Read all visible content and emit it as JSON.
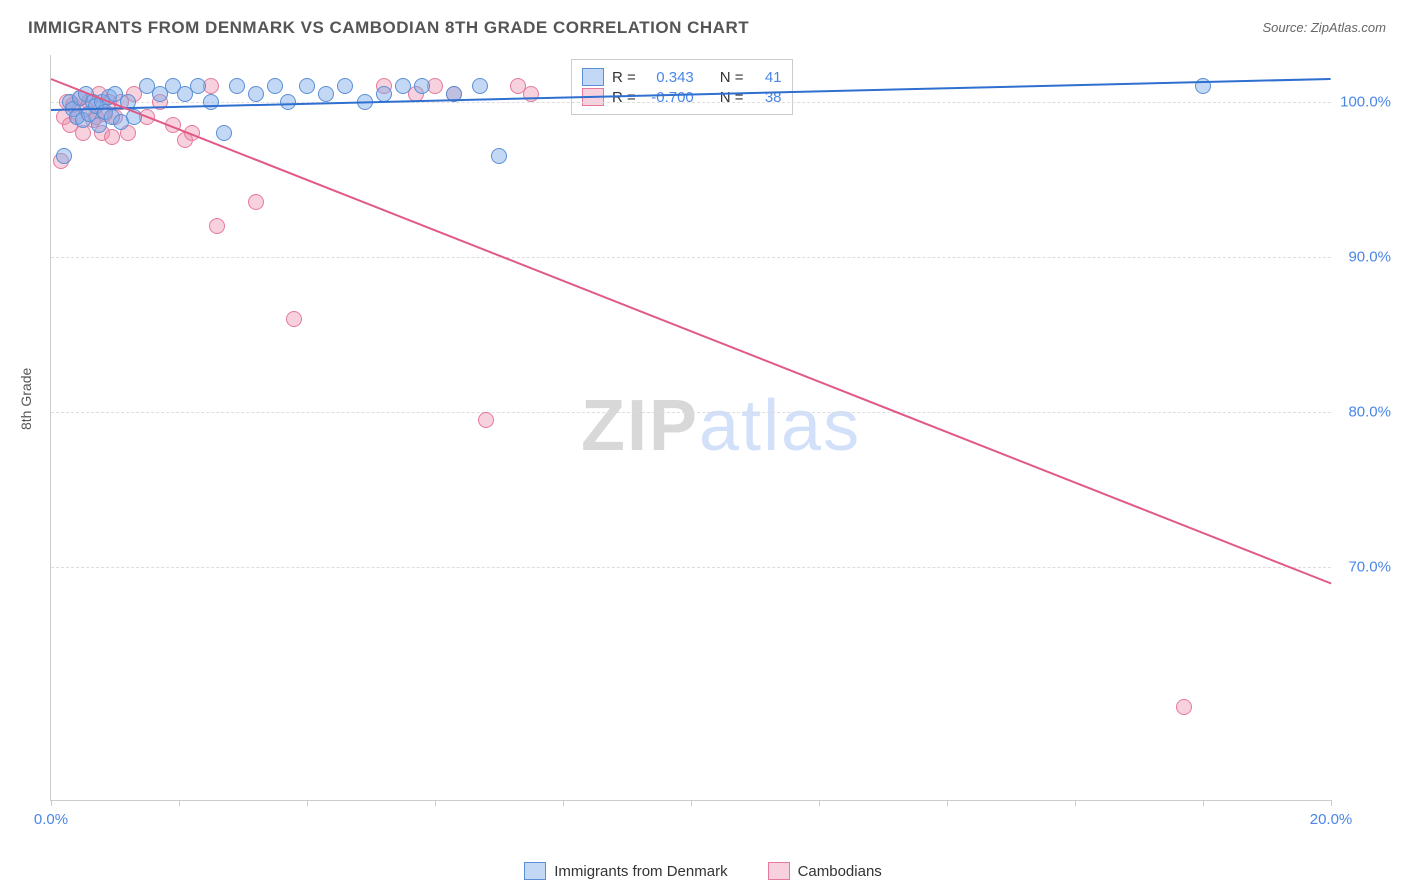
{
  "title": "IMMIGRANTS FROM DENMARK VS CAMBODIAN 8TH GRADE CORRELATION CHART",
  "source_label": "Source: ",
  "source_name": "ZipAtlas.com",
  "y_axis_label": "8th Grade",
  "watermark_a": "ZIP",
  "watermark_b": "atlas",
  "chart": {
    "type": "scatter",
    "xlim": [
      0,
      20
    ],
    "ylim": [
      55,
      103
    ],
    "x_ticks": [
      0,
      2,
      4,
      6,
      8,
      10,
      12,
      14,
      16,
      18,
      20
    ],
    "x_tick_labels": {
      "0": "0.0%",
      "20": "20.0%"
    },
    "y_ticks": [
      70,
      80,
      90,
      100
    ],
    "y_tick_labels": {
      "70": "70.0%",
      "80": "80.0%",
      "90": "90.0%",
      "100": "100.0%"
    },
    "background_color": "#ffffff",
    "grid_color": "#dddddd",
    "series": [
      {
        "name": "Immigrants from Denmark",
        "fill": "rgba(122,168,232,0.45)",
        "stroke": "#5b8fd6",
        "line_color": "#2f6fcf",
        "r_value": "0.343",
        "n_value": "41",
        "trend": {
          "x1": 0,
          "y1": 99.5,
          "x2": 20,
          "y2": 101.5
        },
        "marker_size": 16,
        "points": [
          [
            0.2,
            96.5
          ],
          [
            0.3,
            100.0
          ],
          [
            0.35,
            99.5
          ],
          [
            0.4,
            99.0
          ],
          [
            0.45,
            100.2
          ],
          [
            0.5,
            98.8
          ],
          [
            0.55,
            100.5
          ],
          [
            0.6,
            99.2
          ],
          [
            0.65,
            100.0
          ],
          [
            0.7,
            99.7
          ],
          [
            0.75,
            98.5
          ],
          [
            0.8,
            100.0
          ],
          [
            0.85,
            99.3
          ],
          [
            0.9,
            100.3
          ],
          [
            0.95,
            99.0
          ],
          [
            1.0,
            100.5
          ],
          [
            1.1,
            98.7
          ],
          [
            1.2,
            100.0
          ],
          [
            1.3,
            99.0
          ],
          [
            1.5,
            101.0
          ],
          [
            1.7,
            100.5
          ],
          [
            1.9,
            101.0
          ],
          [
            2.1,
            100.5
          ],
          [
            2.3,
            101.0
          ],
          [
            2.5,
            100.0
          ],
          [
            2.7,
            98.0
          ],
          [
            2.9,
            101.0
          ],
          [
            3.2,
            100.5
          ],
          [
            3.5,
            101.0
          ],
          [
            3.7,
            100.0
          ],
          [
            4.0,
            101.0
          ],
          [
            4.3,
            100.5
          ],
          [
            4.6,
            101.0
          ],
          [
            4.9,
            100.0
          ],
          [
            5.2,
            100.5
          ],
          [
            5.5,
            101.0
          ],
          [
            5.8,
            101.0
          ],
          [
            6.3,
            100.5
          ],
          [
            6.7,
            101.0
          ],
          [
            7.0,
            96.5
          ],
          [
            18.0,
            101.0
          ]
        ]
      },
      {
        "name": "Cambodians",
        "fill": "rgba(236,140,170,0.40)",
        "stroke": "#e57a9a",
        "line_color": "#e05a85",
        "r_value": "-0.700",
        "n_value": "38",
        "trend": {
          "x1": 0,
          "y1": 101.5,
          "x2": 20,
          "y2": 69.0
        },
        "marker_size": 16,
        "points": [
          [
            0.15,
            96.2
          ],
          [
            0.2,
            99.0
          ],
          [
            0.25,
            100.0
          ],
          [
            0.3,
            98.5
          ],
          [
            0.35,
            99.8
          ],
          [
            0.4,
            99.0
          ],
          [
            0.45,
            100.2
          ],
          [
            0.5,
            98.0
          ],
          [
            0.55,
            99.5
          ],
          [
            0.6,
            100.0
          ],
          [
            0.65,
            98.8
          ],
          [
            0.7,
            99.0
          ],
          [
            0.75,
            100.5
          ],
          [
            0.8,
            98.0
          ],
          [
            0.85,
            99.2
          ],
          [
            0.9,
            100.0
          ],
          [
            0.95,
            97.7
          ],
          [
            1.0,
            99.0
          ],
          [
            1.1,
            100.0
          ],
          [
            1.2,
            98.0
          ],
          [
            1.3,
            100.5
          ],
          [
            1.5,
            99.0
          ],
          [
            1.7,
            100.0
          ],
          [
            1.9,
            98.5
          ],
          [
            2.1,
            97.5
          ],
          [
            2.2,
            98.0
          ],
          [
            2.5,
            101.0
          ],
          [
            2.6,
            92.0
          ],
          [
            3.2,
            93.5
          ],
          [
            3.8,
            86.0
          ],
          [
            5.2,
            101.0
          ],
          [
            5.7,
            100.5
          ],
          [
            6.0,
            101.0
          ],
          [
            6.3,
            100.5
          ],
          [
            6.8,
            79.5
          ],
          [
            7.3,
            101.0
          ],
          [
            7.5,
            100.5
          ],
          [
            17.7,
            61.0
          ]
        ]
      }
    ]
  },
  "legend": {
    "r_label": "R =",
    "n_label": "N ="
  },
  "bottom_legend": {
    "series1": "Immigrants from Denmark",
    "series2": "Cambodians"
  }
}
